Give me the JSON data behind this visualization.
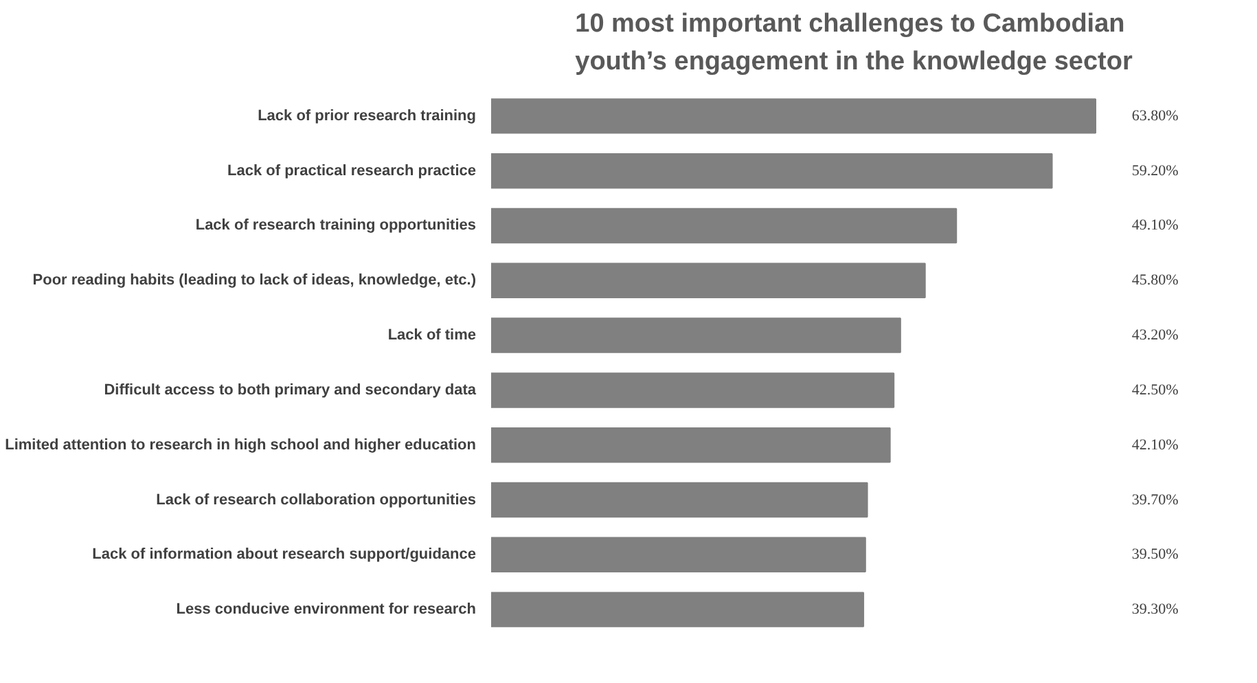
{
  "chart_data": {
    "type": "bar",
    "orientation": "horizontal",
    "title": "10 most important challenges to Cambodian youth’s engagement in the knowledge sector",
    "categories": [
      "Lack of prior research training",
      "Lack of practical research practice",
      "Lack of research training opportunities",
      "Poor reading habits (leading to lack of ideas, knowledge, etc.)",
      "Lack of time",
      "Difficult access to both primary and secondary data",
      "Limited attention to research in high school and higher education",
      "Lack of research collaboration opportunities",
      "Lack of information about research support/guidance",
      "Less conducive environment for research"
    ],
    "values": [
      63.8,
      59.2,
      49.1,
      45.8,
      43.2,
      42.5,
      42.1,
      39.7,
      39.5,
      39.3
    ],
    "value_labels": [
      "63.80%",
      "59.20%",
      "49.10%",
      "45.80%",
      "43.20%",
      "42.50%",
      "42.10%",
      "39.70%",
      "39.50%",
      "39.30%"
    ],
    "color": "#808080",
    "grid": false,
    "tick_labels": "y"
  }
}
